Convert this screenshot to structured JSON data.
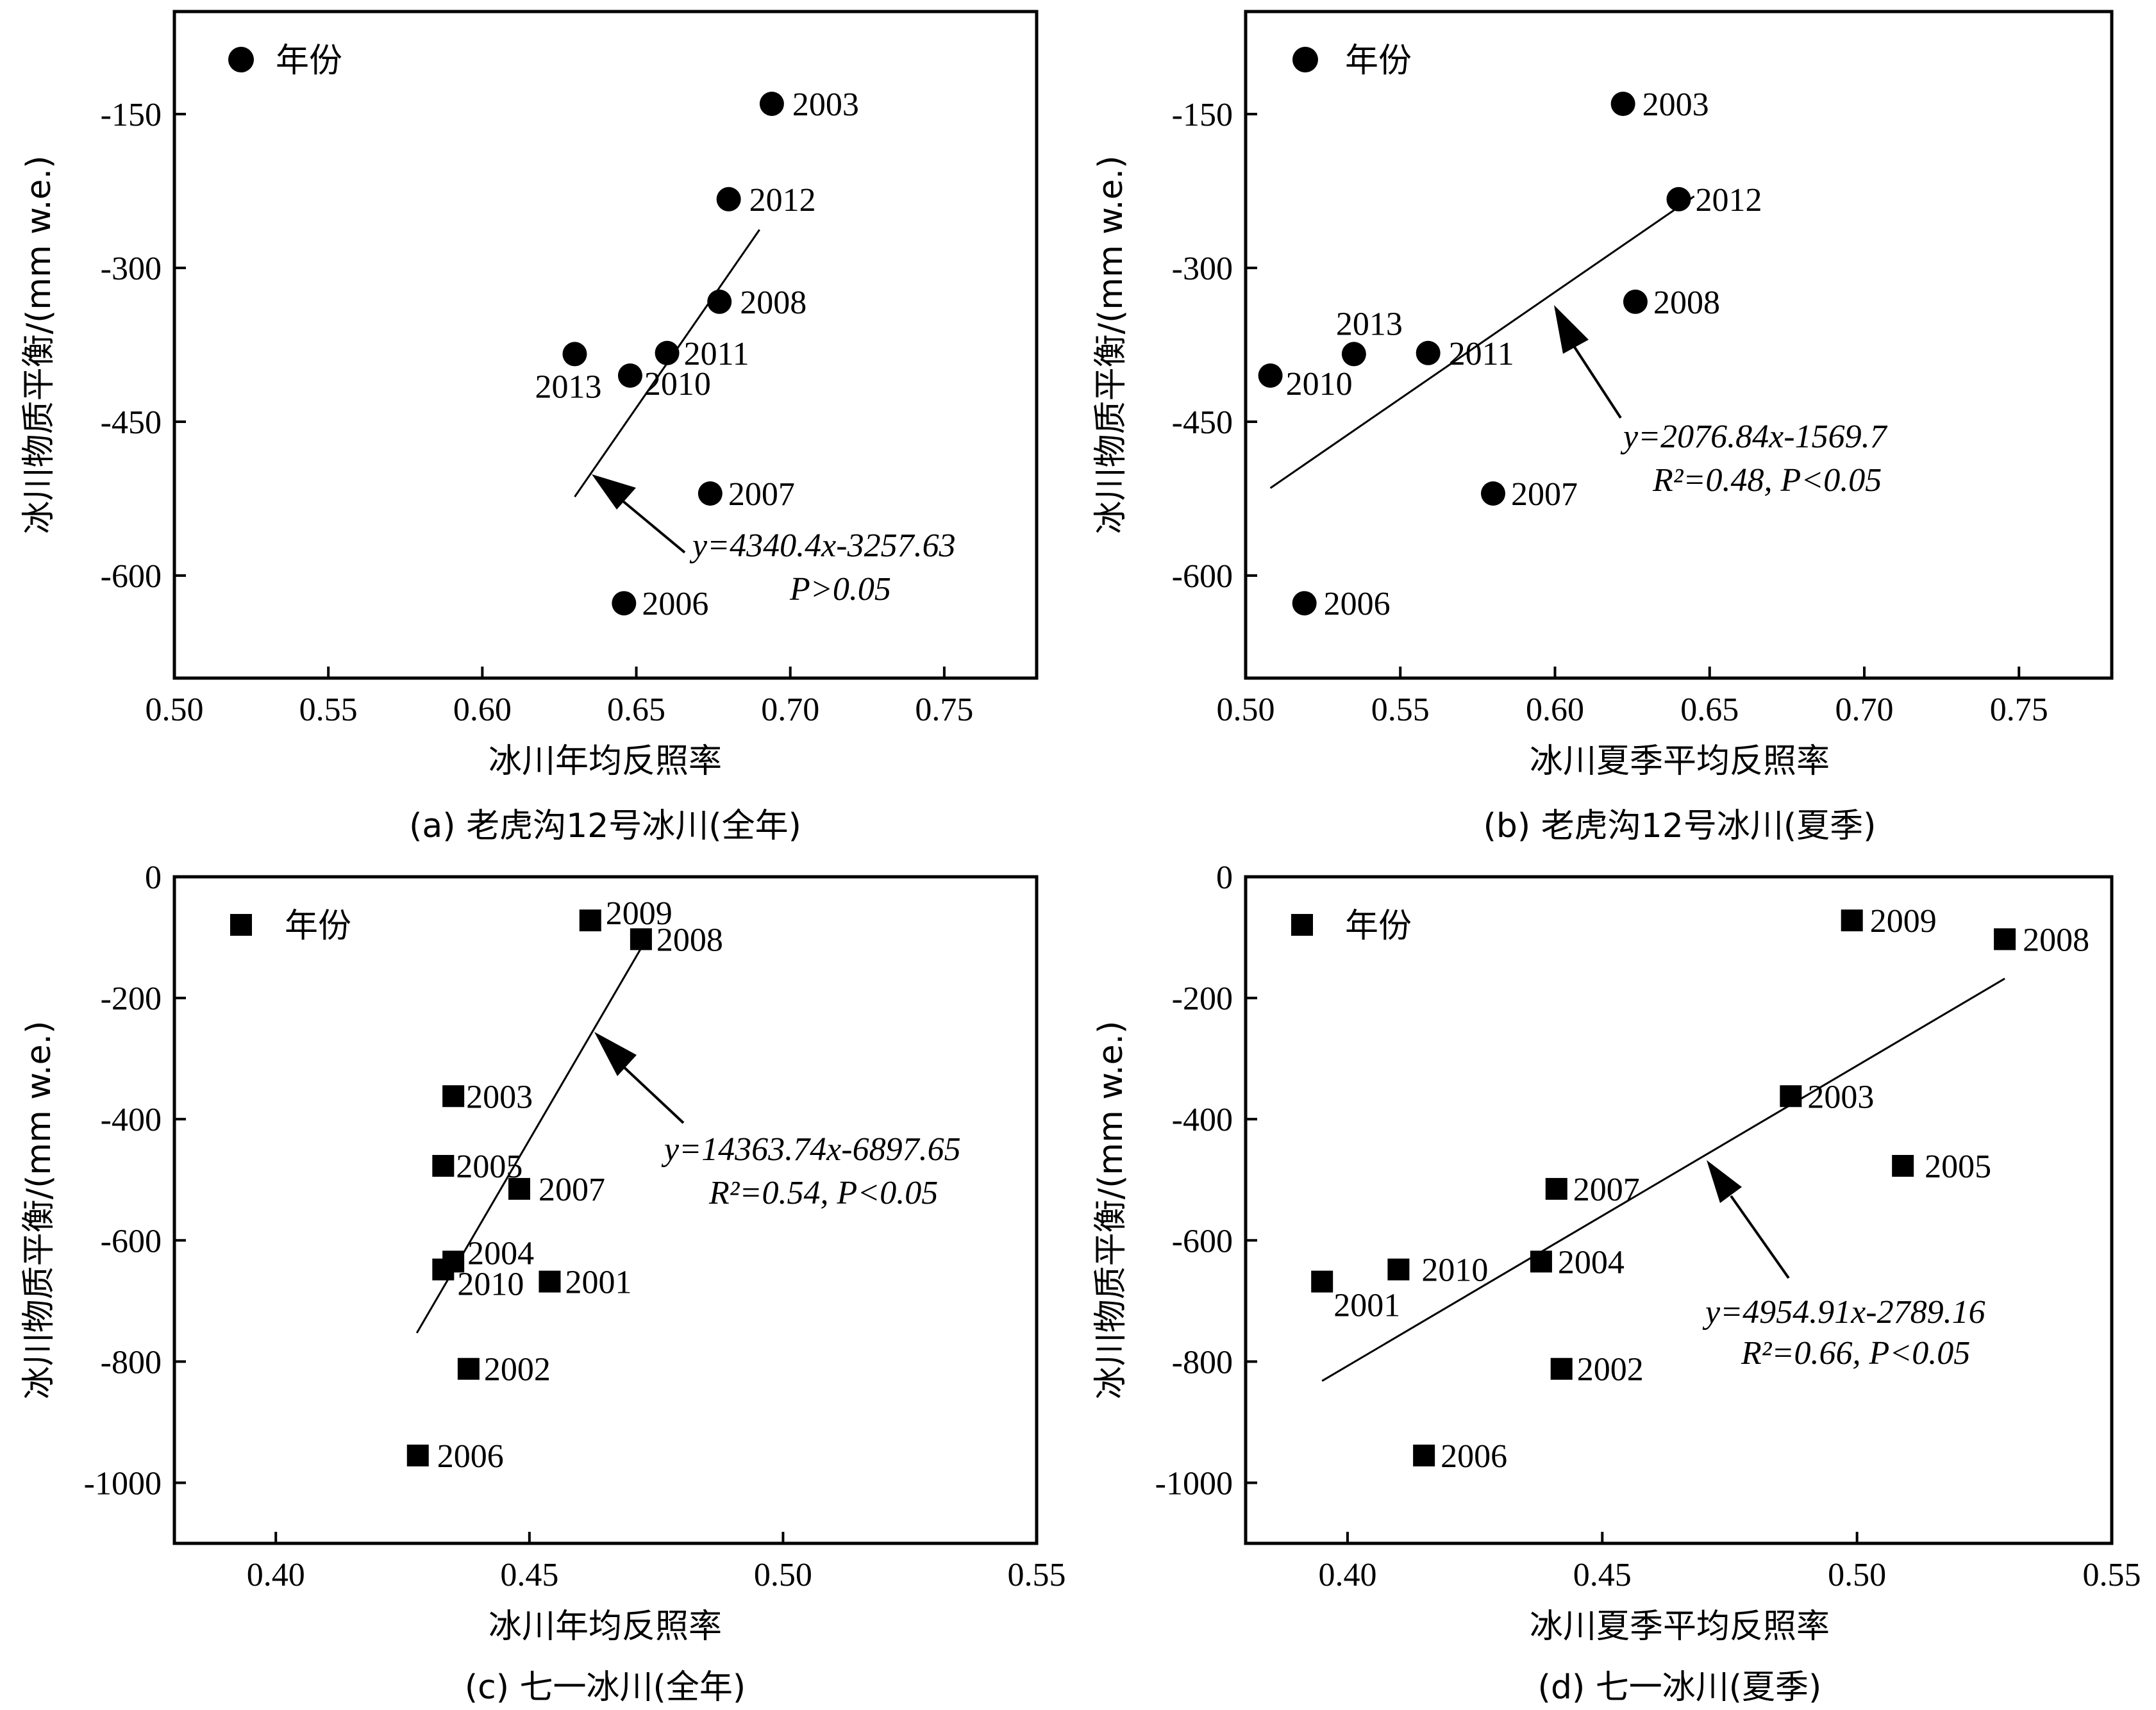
{
  "chart_data": [
    {
      "type": "scatter",
      "caption": "(a) 老虎沟12号冰川(全年)",
      "xlabel": "冰川年均反照率",
      "ylabel": "冰川物质平衡/(mm w.e.)",
      "legend": {
        "marker": "circle",
        "label": "年份",
        "position": "top-left"
      },
      "xlim": [
        0.5,
        0.78
      ],
      "ylim": [
        -700,
        -50
      ],
      "xticks": [
        0.5,
        0.55,
        0.6,
        0.65,
        0.7,
        0.75
      ],
      "xtick_labels": [
        "0.50",
        "0.55",
        "0.60",
        "0.65",
        "0.70",
        "0.75"
      ],
      "yticks": [
        -150,
        -300,
        -450,
        -600
      ],
      "ytick_labels": [
        "-150",
        "-300",
        "-450",
        "-600"
      ],
      "points": [
        {
          "label": "2003",
          "x": 0.694,
          "y": -140
        },
        {
          "label": "2012",
          "x": 0.68,
          "y": -233
        },
        {
          "label": "2008",
          "x": 0.677,
          "y": -333
        },
        {
          "label": "2011",
          "x": 0.66,
          "y": -383
        },
        {
          "label": "2013",
          "x": 0.63,
          "y": -384
        },
        {
          "label": "2010",
          "x": 0.648,
          "y": -405
        },
        {
          "label": "2007",
          "x": 0.674,
          "y": -520
        },
        {
          "label": "2006",
          "x": 0.646,
          "y": -627
        }
      ],
      "fit": {
        "slope": 4340.4,
        "intercept": -3257.63,
        "x_range": [
          0.63,
          0.69
        ]
      },
      "annotation": {
        "equation": "y=4340.4x-3257.63",
        "stats": "P>0.05"
      }
    },
    {
      "type": "scatter",
      "caption": "(b) 老虎沟12号冰川(夏季)",
      "xlabel": "冰川夏季平均反照率",
      "ylabel": "冰川物质平衡/(mm w.e.)",
      "legend": {
        "marker": "circle",
        "label": "年份",
        "position": "top-left"
      },
      "xlim": [
        0.5,
        0.78
      ],
      "ylim": [
        -700,
        -50
      ],
      "xticks": [
        0.5,
        0.55,
        0.6,
        0.65,
        0.7,
        0.75
      ],
      "xtick_labels": [
        "0.50",
        "0.55",
        "0.60",
        "0.65",
        "0.70",
        "0.75"
      ],
      "yticks": [
        -150,
        -300,
        -450,
        -600
      ],
      "ytick_labels": [
        "-150",
        "-300",
        "-450",
        "-600"
      ],
      "points": [
        {
          "label": "2003",
          "x": 0.622,
          "y": -140
        },
        {
          "label": "2012",
          "x": 0.64,
          "y": -233
        },
        {
          "label": "2008",
          "x": 0.626,
          "y": -333
        },
        {
          "label": "2013",
          "x": 0.535,
          "y": -384
        },
        {
          "label": "2011",
          "x": 0.559,
          "y": -383
        },
        {
          "label": "2010",
          "x": 0.508,
          "y": -405
        },
        {
          "label": "2007",
          "x": 0.58,
          "y": -520
        },
        {
          "label": "2006",
          "x": 0.519,
          "y": -627
        }
      ],
      "fit": {
        "slope": 2076.84,
        "intercept": -1569.7,
        "x_range": [
          0.508,
          0.645
        ]
      },
      "annotation": {
        "equation": "y=2076.84x-1569.7",
        "stats": "R²=0.48, P<0.05"
      }
    },
    {
      "type": "scatter",
      "caption": "(c) 七一冰川(全年)",
      "xlabel": "冰川年均反照率",
      "ylabel": "冰川物质平衡/(mm w.e.)",
      "legend": {
        "marker": "square",
        "label": "年份",
        "position": "top-left"
      },
      "xlim": [
        0.38,
        0.55
      ],
      "ylim": [
        -1100,
        0
      ],
      "xticks": [
        0.4,
        0.45,
        0.5,
        0.55
      ],
      "xtick_labels": [
        "0.40",
        "0.45",
        "0.50",
        "0.55"
      ],
      "yticks": [
        0,
        -200,
        -400,
        -600,
        -800,
        -1000
      ],
      "ytick_labels": [
        "0",
        "-200",
        "-400",
        "-600",
        "-800",
        "-1000"
      ],
      "points": [
        {
          "label": "2009",
          "x": 0.462,
          "y": -72
        },
        {
          "label": "2008",
          "x": 0.472,
          "y": -103
        },
        {
          "label": "2003",
          "x": 0.435,
          "y": -362
        },
        {
          "label": "2005",
          "x": 0.433,
          "y": -477
        },
        {
          "label": "2007",
          "x": 0.448,
          "y": -515
        },
        {
          "label": "2004",
          "x": 0.435,
          "y": -635
        },
        {
          "label": "2010",
          "x": 0.433,
          "y": -648
        },
        {
          "label": "2001",
          "x": 0.454,
          "y": -668
        },
        {
          "label": "2002",
          "x": 0.438,
          "y": -812
        },
        {
          "label": "2006",
          "x": 0.428,
          "y": -955
        }
      ],
      "fit": {
        "slope": 14363.74,
        "intercept": -6897.65,
        "x_range": [
          0.4278,
          0.473
        ]
      },
      "annotation": {
        "equation": "y=14363.74x-6897.65",
        "stats": "R²=0.54, P<0.05"
      }
    },
    {
      "type": "scatter",
      "caption": "(d) 七一冰川(夏季)",
      "xlabel": "冰川夏季平均反照率",
      "ylabel": "冰川物质平衡/(mm w.e.)",
      "legend": {
        "marker": "square",
        "label": "年份",
        "position": "top-left"
      },
      "xlim": [
        0.38,
        0.55
      ],
      "ylim": [
        -1100,
        0
      ],
      "xticks": [
        0.4,
        0.45,
        0.5,
        0.55
      ],
      "xtick_labels": [
        "0.40",
        "0.45",
        "0.50",
        "0.55"
      ],
      "yticks": [
        0,
        -200,
        -400,
        -600,
        -800,
        -1000
      ],
      "ytick_labels": [
        "0",
        "-200",
        "-400",
        "-600",
        "-800",
        "-1000"
      ],
      "points": [
        {
          "label": "2009",
          "x": 0.499,
          "y": -72
        },
        {
          "label": "2008",
          "x": 0.529,
          "y": -103
        },
        {
          "label": "2003",
          "x": 0.487,
          "y": -362
        },
        {
          "label": "2005",
          "x": 0.509,
          "y": -477
        },
        {
          "label": "2007",
          "x": 0.441,
          "y": -515
        },
        {
          "label": "2004",
          "x": 0.438,
          "y": -635
        },
        {
          "label": "2010",
          "x": 0.41,
          "y": -648
        },
        {
          "label": "2001",
          "x": 0.395,
          "y": -668
        },
        {
          "label": "2002",
          "x": 0.442,
          "y": -812
        },
        {
          "label": "2006",
          "x": 0.415,
          "y": -955
        }
      ],
      "fit": {
        "slope": 4954.91,
        "intercept": -2789.16,
        "x_range": [
          0.395,
          0.529
        ]
      },
      "annotation": {
        "equation": "y=4954.91x-2789.16",
        "stats": "R²=0.66, P<0.05"
      }
    }
  ]
}
